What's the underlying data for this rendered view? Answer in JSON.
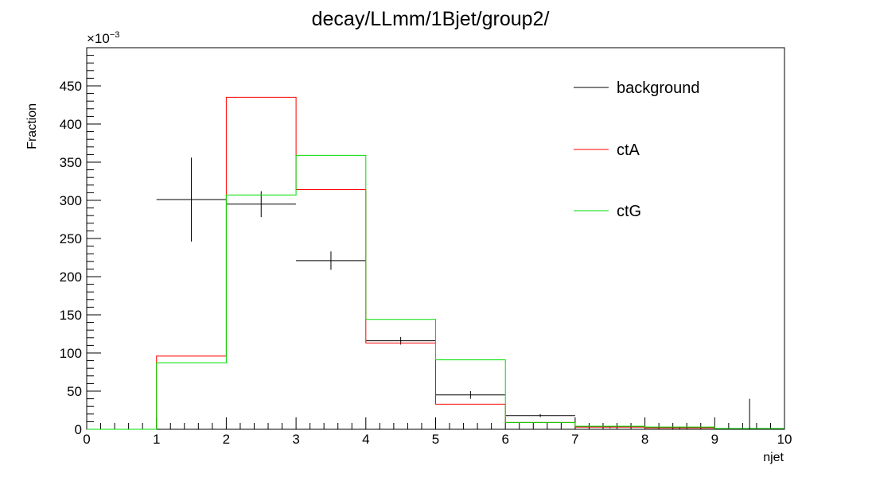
{
  "chart_data": {
    "type": "histogram",
    "title": "decay/LLmm/1Bjet/group2/",
    "xlabel": "njet",
    "ylabel": "Fraction",
    "y_exponent_label": "×10",
    "y_exponent_power": "−3",
    "xlim": [
      0,
      10
    ],
    "ylim": [
      0,
      500
    ],
    "x_ticks": [
      "0",
      "1",
      "2",
      "3",
      "4",
      "5",
      "6",
      "7",
      "8",
      "9",
      "10"
    ],
    "y_ticks": [
      "0",
      "50",
      "100",
      "150",
      "200",
      "250",
      "300",
      "350",
      "400",
      "450"
    ],
    "bin_edges": [
      0,
      1,
      2,
      3,
      4,
      5,
      6,
      7,
      8,
      9,
      10
    ],
    "legend_position": "top-right",
    "series": [
      {
        "name": "background",
        "style": "points-with-errors",
        "color": "#000000",
        "values": [
          0,
          301,
          295,
          221,
          116,
          45,
          18,
          3,
          2,
          1
        ],
        "errors": [
          0,
          55,
          17,
          12,
          5,
          5,
          2,
          1.5,
          1.5,
          1
        ]
      },
      {
        "name": "ctA",
        "style": "step",
        "color": "#ff0000",
        "values": [
          0,
          96,
          435,
          314,
          113,
          33,
          9,
          3,
          2,
          1
        ]
      },
      {
        "name": "ctG",
        "style": "step",
        "color": "#00dd00",
        "values": [
          0,
          87,
          307,
          359,
          144,
          91,
          9,
          4,
          3,
          1
        ]
      }
    ],
    "annotations": [
      {
        "type": "vertical-line",
        "x": 9.5,
        "y_top": 40,
        "color": "#000000"
      }
    ]
  }
}
